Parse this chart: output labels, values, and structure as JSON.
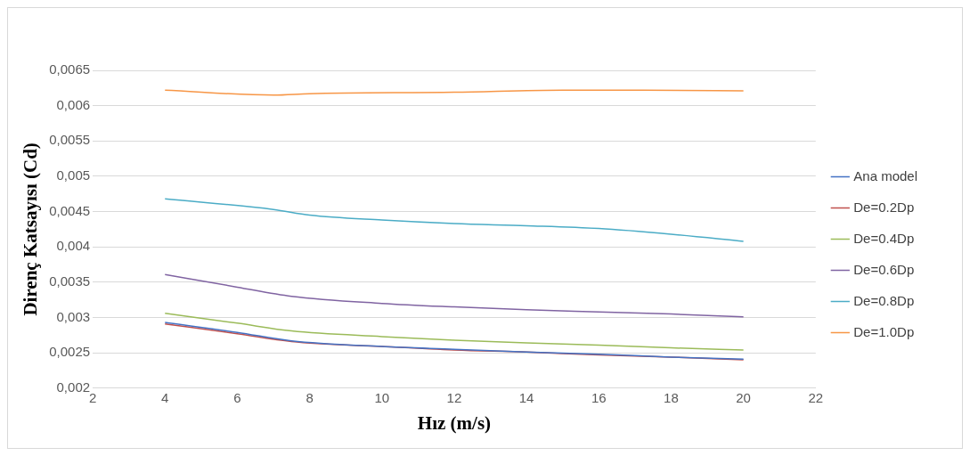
{
  "chart_data": {
    "type": "line",
    "xlabel": "Hız (m/s)",
    "ylabel": "Direnç Katsayısı (Cd)",
    "xlim": [
      2,
      22
    ],
    "xticks": [
      2,
      4,
      6,
      8,
      10,
      12,
      14,
      16,
      18,
      20,
      22
    ],
    "ylim": [
      0.002,
      0.0065
    ],
    "yticks": [
      {
        "value": 0.002,
        "label": "0,002"
      },
      {
        "value": 0.0025,
        "label": "0,0025"
      },
      {
        "value": 0.003,
        "label": "0,003"
      },
      {
        "value": 0.0035,
        "label": "0,0035"
      },
      {
        "value": 0.004,
        "label": "0,004"
      },
      {
        "value": 0.0045,
        "label": "0,0045"
      },
      {
        "value": 0.005,
        "label": "0,005"
      },
      {
        "value": 0.0055,
        "label": "0,0055"
      },
      {
        "value": 0.006,
        "label": "0,006"
      },
      {
        "value": 0.0065,
        "label": "0,0065"
      }
    ],
    "grid": "y",
    "legend": "right",
    "marker": "none",
    "line_style": "solid",
    "series": [
      {
        "name": "Ana model",
        "color": "#4472c4",
        "x": [
          4,
          6,
          7.5,
          10,
          12,
          14,
          16,
          18,
          20
        ],
        "values": [
          0.00293,
          0.00279,
          0.00267,
          0.00259,
          0.00255,
          0.00251,
          0.00248,
          0.00244,
          0.00241
        ]
      },
      {
        "name": "De=0.2Dp",
        "color": "#c0504d",
        "x": [
          4,
          6,
          7.5,
          10,
          12,
          14,
          16,
          18,
          20
        ],
        "values": [
          0.00291,
          0.00277,
          0.00266,
          0.00259,
          0.00254,
          0.00251,
          0.00247,
          0.00244,
          0.0024
        ]
      },
      {
        "name": "De=0.4Dp",
        "color": "#9bbb59",
        "x": [
          4,
          6,
          7.5,
          10,
          12,
          14,
          16,
          18,
          20
        ],
        "values": [
          0.00306,
          0.00292,
          0.00281,
          0.00273,
          0.00268,
          0.00264,
          0.00261,
          0.00257,
          0.00254
        ]
      },
      {
        "name": "De=0.6Dp",
        "color": "#8064a2",
        "x": [
          4,
          6,
          7.5,
          10,
          12,
          14,
          16,
          18,
          20
        ],
        "values": [
          0.00361,
          0.00343,
          0.0033,
          0.0032,
          0.00315,
          0.00311,
          0.00308,
          0.00305,
          0.00301
        ]
      },
      {
        "name": "De=0.8Dp",
        "color": "#4bacc6",
        "x": [
          4,
          7,
          8,
          10,
          12,
          14,
          16,
          18,
          20
        ],
        "values": [
          0.00468,
          0.00453,
          0.00445,
          0.00438,
          0.00433,
          0.0043,
          0.00426,
          0.00418,
          0.00408
        ]
      },
      {
        "name": "De=1.0Dp",
        "color": "#f79646",
        "x": [
          4,
          7,
          8,
          12,
          15,
          17,
          20
        ],
        "values": [
          0.00622,
          0.00615,
          0.00617,
          0.00619,
          0.00622,
          0.00622,
          0.00621
        ]
      }
    ]
  }
}
